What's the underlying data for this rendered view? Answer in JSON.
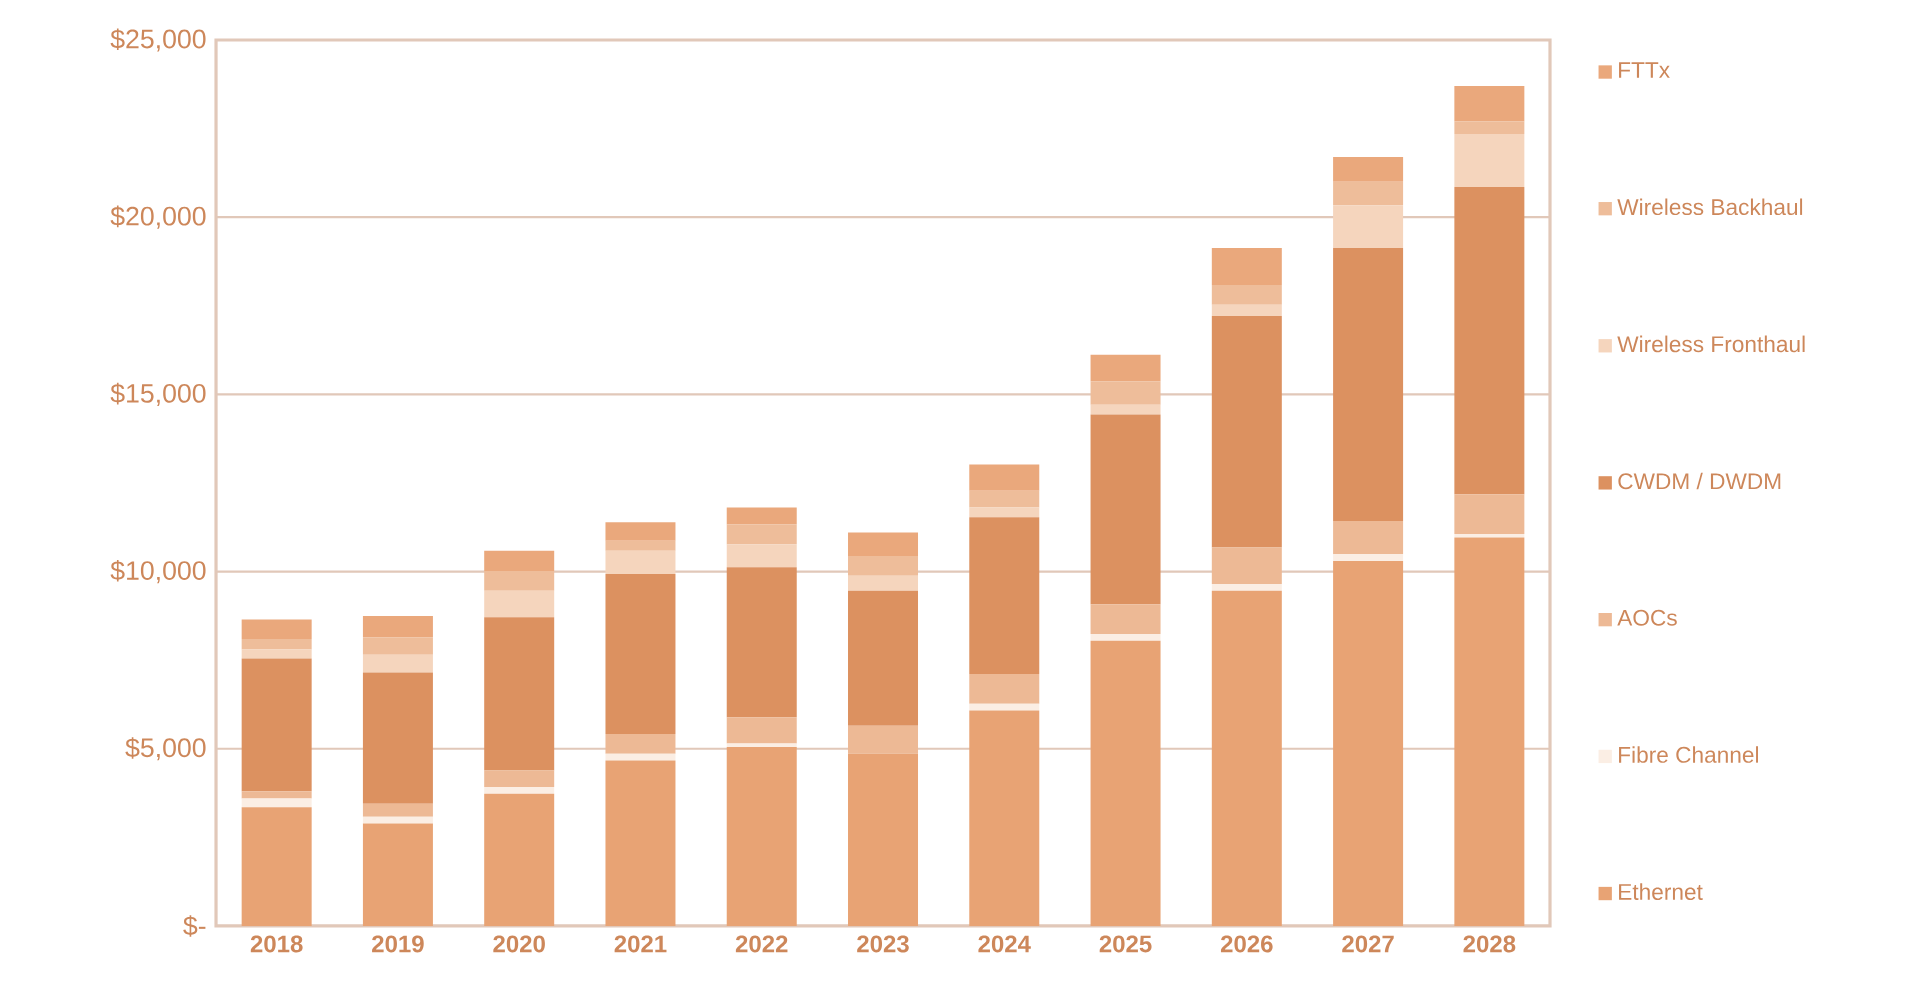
{
  "chart_data": {
    "type": "bar",
    "stacked": true,
    "categories": [
      "2018",
      "2019",
      "2020",
      "2021",
      "2022",
      "2023",
      "2024",
      "2025",
      "2026",
      "2027",
      "2028"
    ],
    "series": [
      {
        "name": "Ethernet",
        "color": "#e8a374",
        "values": [
          3350,
          2890,
          3730,
          4670,
          5050,
          4860,
          6080,
          8050,
          9460,
          10300,
          10960
        ]
      },
      {
        "name": "Fibre Channel",
        "color": "#fbeee4",
        "values": [
          250,
          190,
          190,
          190,
          100,
          null,
          190,
          190,
          190,
          190,
          100
        ]
      },
      {
        "name": "AOCs",
        "color": "#edb995",
        "values": [
          200,
          370,
          470,
          560,
          740,
          790,
          840,
          840,
          1030,
          940,
          1120
        ]
      },
      {
        "name": "CWDM / DWDM",
        "color": "#dc9160",
        "values": [
          3750,
          3700,
          4320,
          4510,
          4230,
          3810,
          4420,
          5350,
          6530,
          7700,
          8670
        ]
      },
      {
        "name": "Wireless Fronthaul",
        "color": "#f5d5bd",
        "values": [
          250,
          500,
          750,
          660,
          650,
          420,
          280,
          280,
          320,
          1210,
          1500
        ]
      },
      {
        "name": "Wireless Backhaul",
        "color": "#eebd9a",
        "values": [
          300,
          500,
          560,
          280,
          560,
          560,
          470,
          660,
          560,
          660,
          350
        ]
      },
      {
        "name": "FTTx",
        "color": "#eaa87c",
        "values": [
          550,
          600,
          570,
          520,
          480,
          660,
          740,
          750,
          1040,
          700,
          1000
        ]
      }
    ],
    "ylim": [
      0,
      25000
    ],
    "yticks": [
      {
        "value": 0,
        "label": "$-"
      },
      {
        "value": 5000,
        "label": "$5,000"
      },
      {
        "value": 10000,
        "label": "$10,000"
      },
      {
        "value": 15000,
        "label": "$15,000"
      },
      {
        "value": 20000,
        "label": "$20,000"
      },
      {
        "value": 25000,
        "label": "$25,000"
      }
    ],
    "grid": "y",
    "legend": "right"
  }
}
